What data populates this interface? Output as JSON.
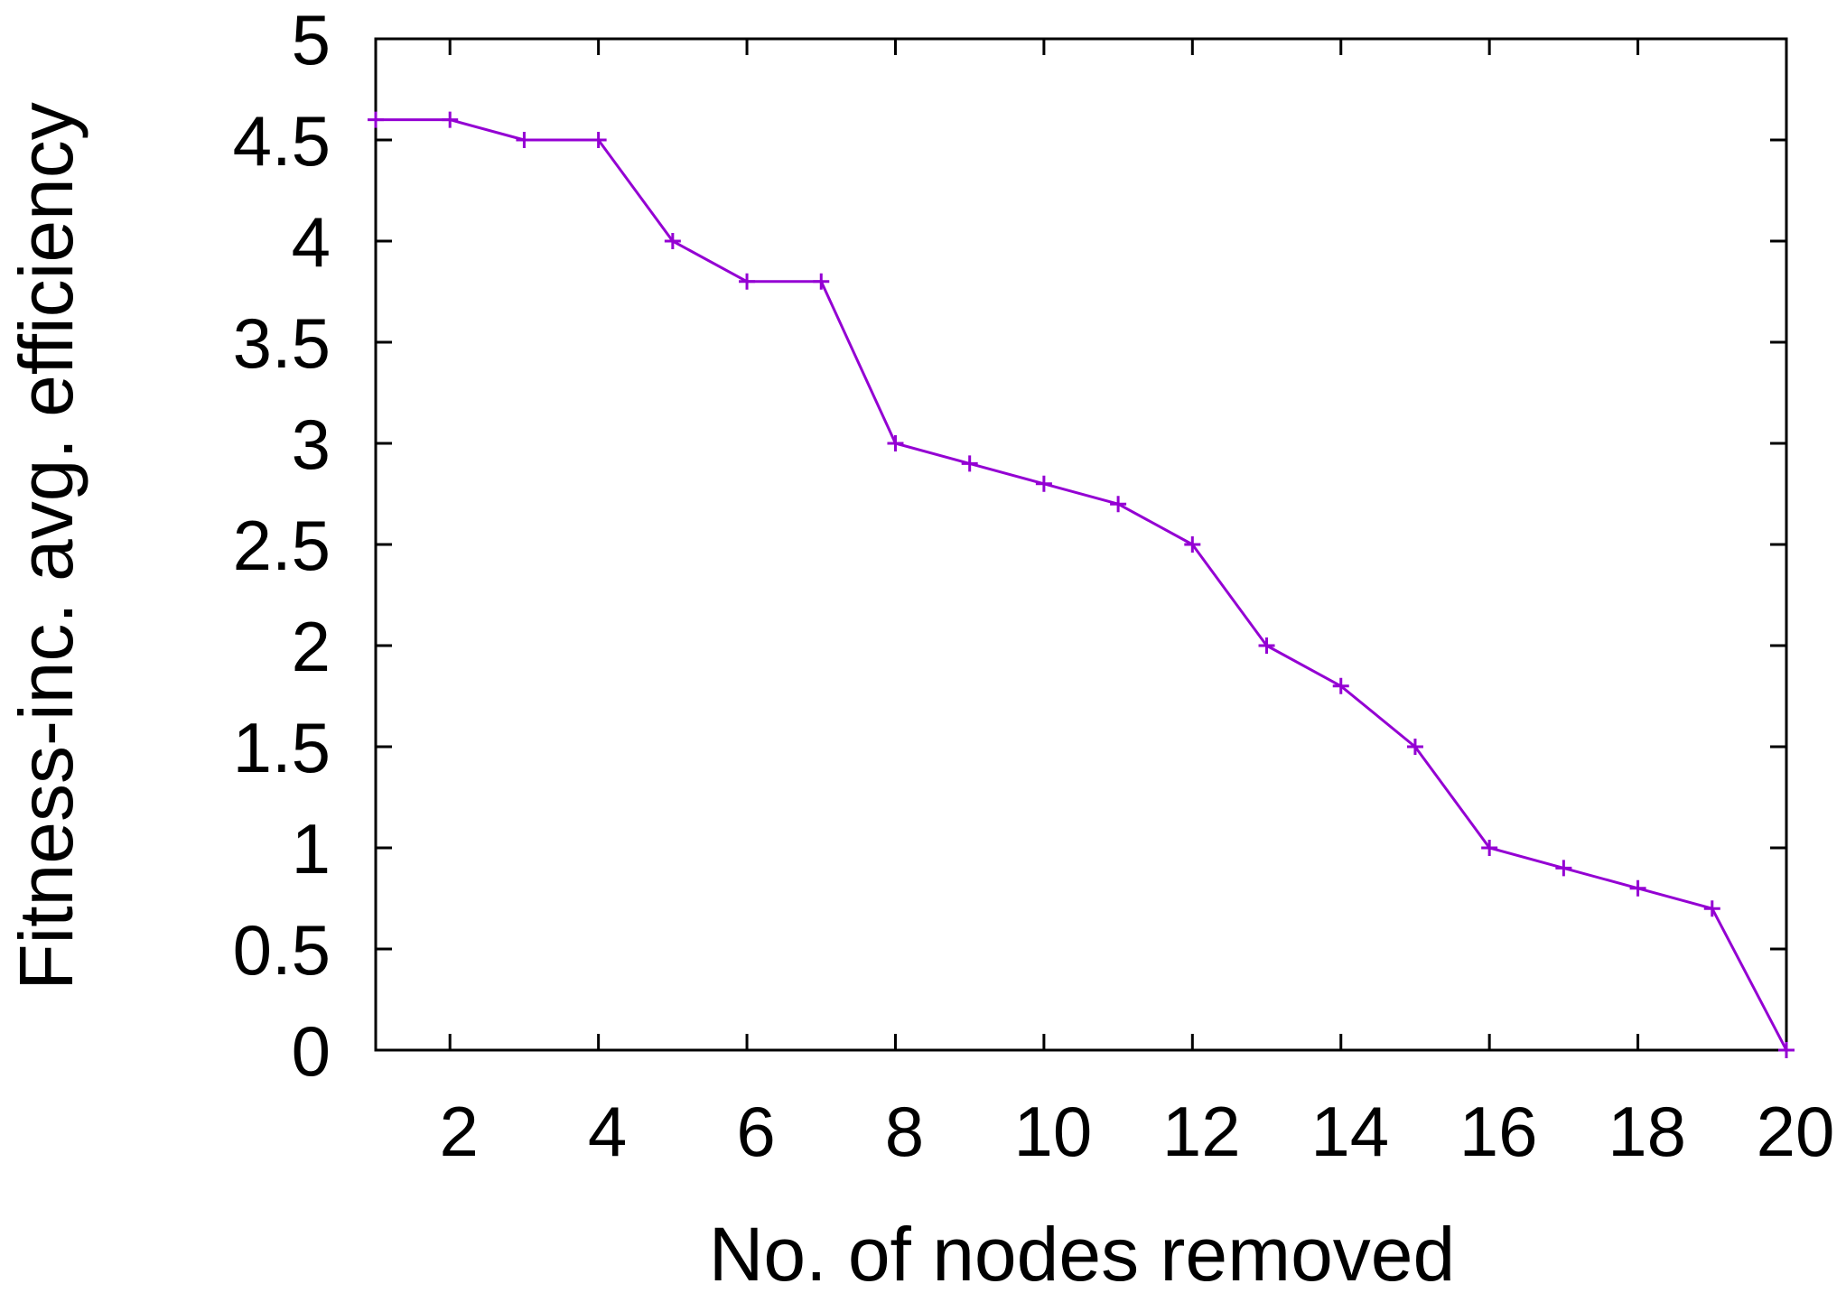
{
  "chart_data": {
    "type": "line",
    "title": "",
    "xlabel": "No. of nodes removed",
    "ylabel": "Fitness-inc. avg. efficiency",
    "xlim": [
      1,
      20
    ],
    "ylim": [
      0,
      5
    ],
    "x_ticks": [
      2,
      4,
      6,
      8,
      10,
      12,
      14,
      16,
      18,
      20
    ],
    "y_ticks": [
      0,
      0.5,
      1,
      1.5,
      2,
      2.5,
      3,
      3.5,
      4,
      4.5,
      5
    ],
    "grid": false,
    "legend": "none",
    "series": [
      {
        "color": "#9400d3",
        "marker": "plus",
        "x": [
          1,
          2,
          3,
          4,
          5,
          6,
          7,
          8,
          9,
          10,
          11,
          12,
          13,
          14,
          15,
          16,
          17,
          18,
          19,
          20
        ],
        "y": [
          4.6,
          4.6,
          4.5,
          4.5,
          4.0,
          3.8,
          3.8,
          3.0,
          2.9,
          2.8,
          2.7,
          2.5,
          2.0,
          1.8,
          1.5,
          1.0,
          0.9,
          0.8,
          0.7,
          0.0
        ]
      }
    ]
  }
}
